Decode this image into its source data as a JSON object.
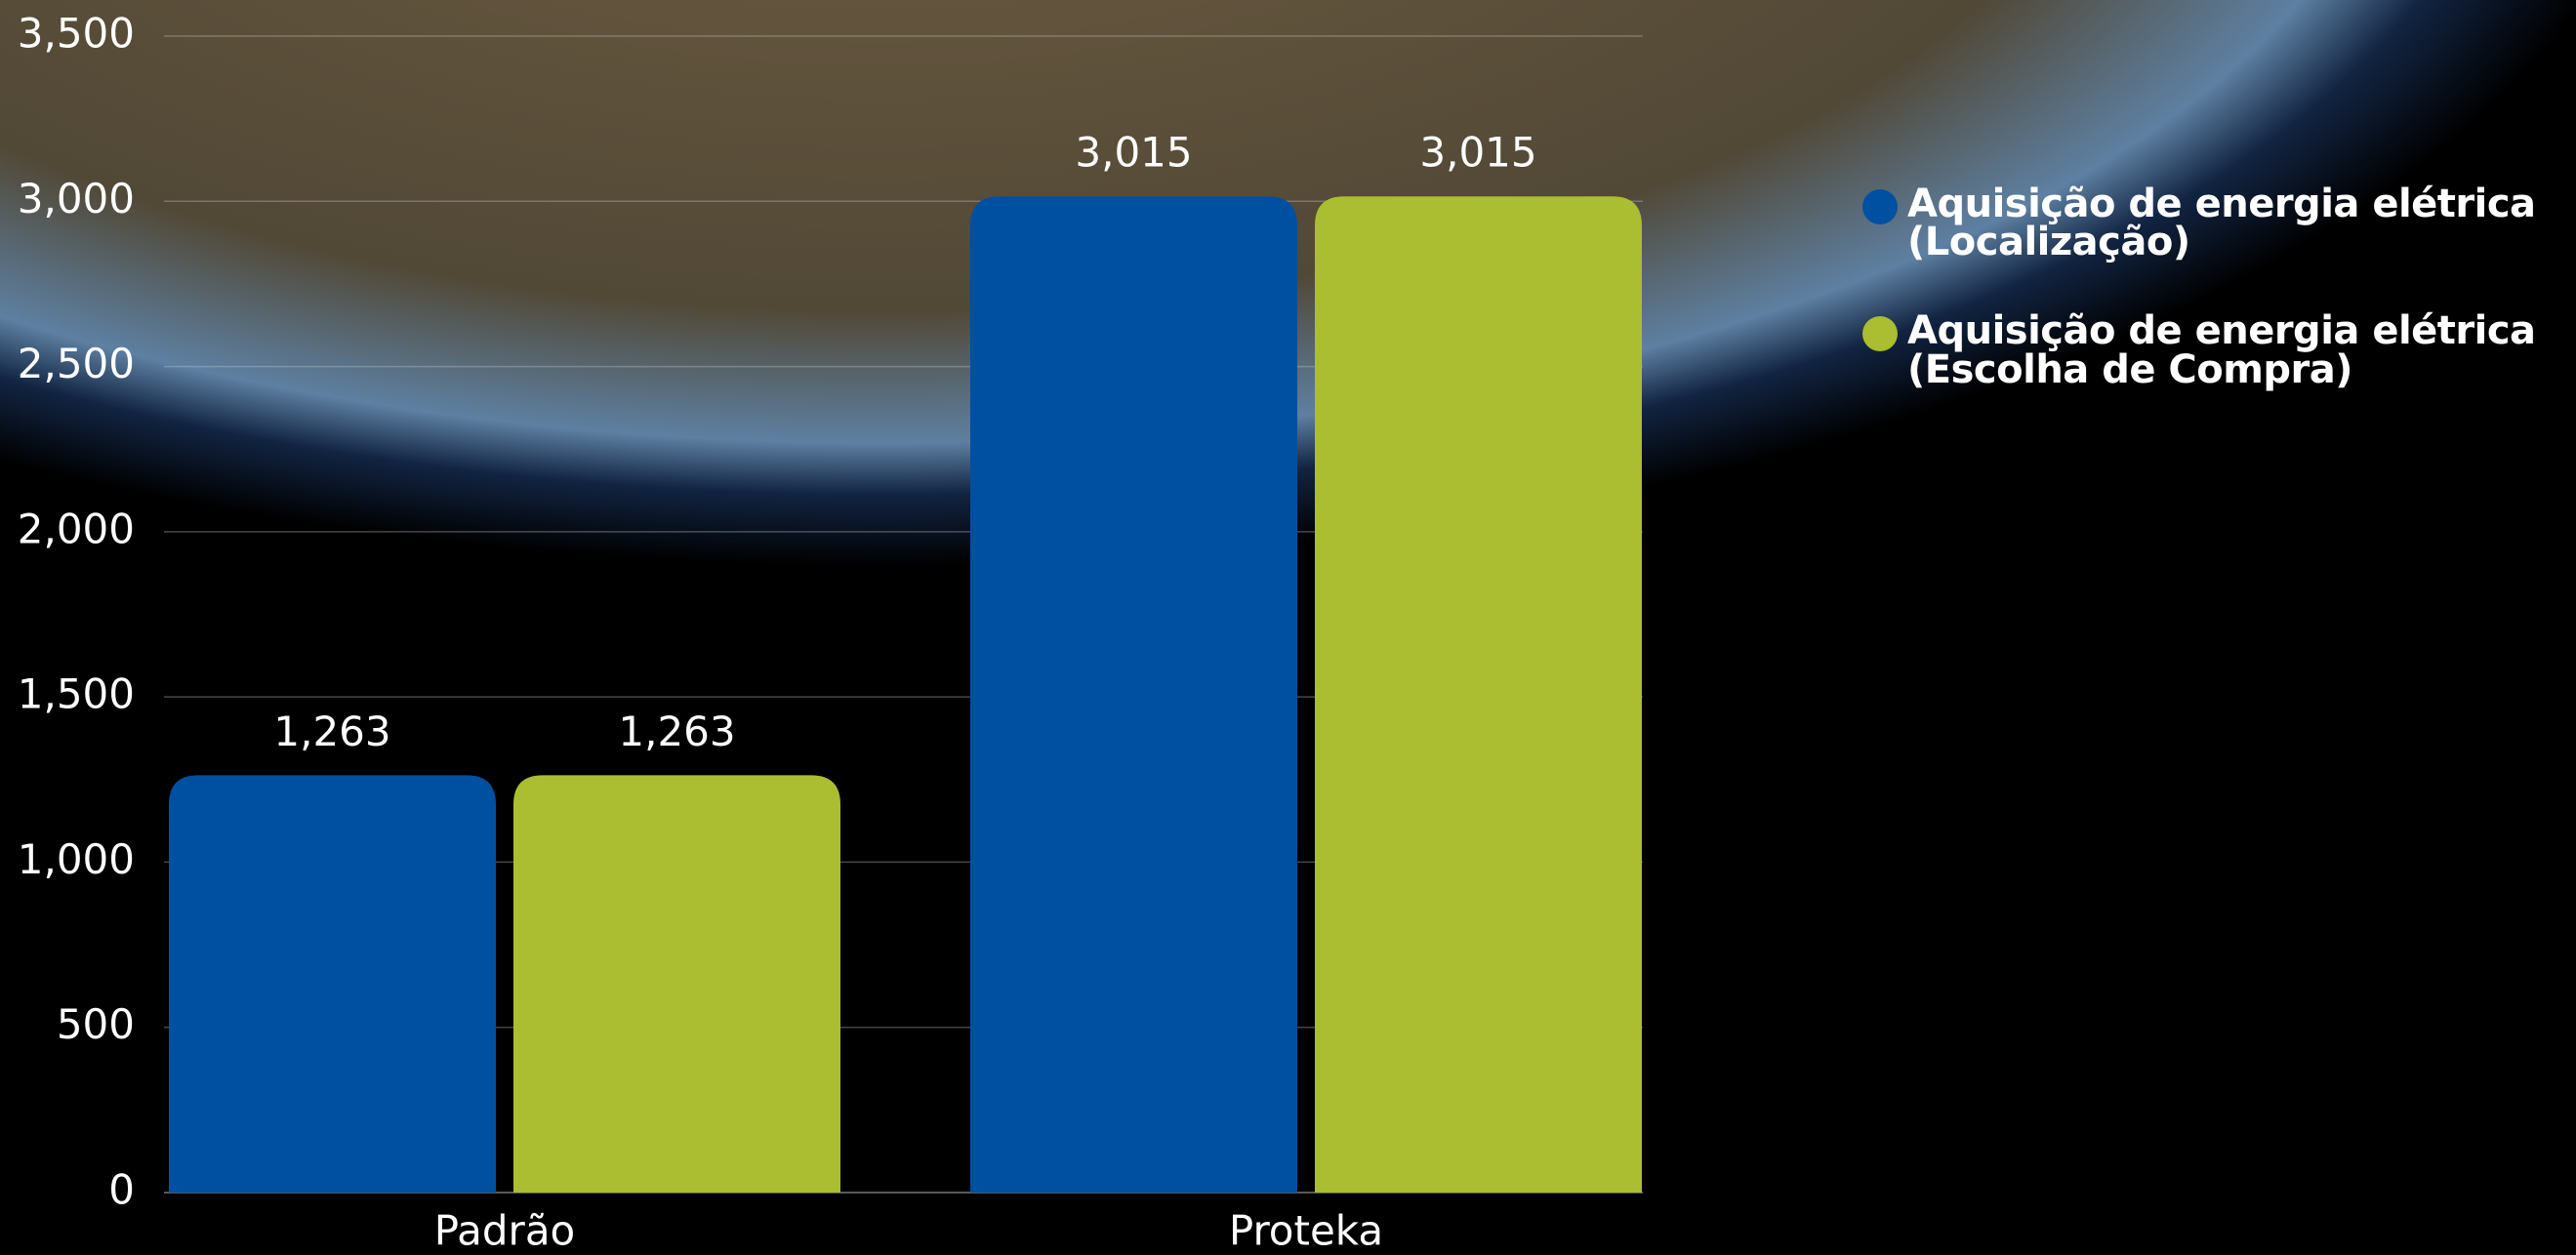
{
  "chart_data": {
    "type": "bar",
    "categories": [
      "Padrão",
      "Proteka"
    ],
    "series": [
      {
        "name": "Aquisição de energia elétrica (Localização)",
        "color": "#0050a2",
        "values": [
          1263,
          3015
        ],
        "value_labels": [
          "1,263",
          "3,015"
        ]
      },
      {
        "name": "Aquisição de energia elétrica (Escolha de Compra)",
        "color": "#abbd30",
        "values": [
          1263,
          3015
        ],
        "value_labels": [
          "1,263",
          "3,015"
        ]
      }
    ],
    "ylim": [
      0,
      3500
    ],
    "yticks": [
      0,
      500,
      {
        "value": 1000,
        "label": "1,000"
      },
      {
        "value": 1500,
        "label": "1,500"
      },
      {
        "value": 2000,
        "label": "2,000"
      },
      {
        "value": 2500,
        "label": "2,500"
      },
      {
        "value": 3000,
        "label": "3,000"
      },
      {
        "value": 3500,
        "label": "3,500"
      }
    ],
    "grid": true
  }
}
